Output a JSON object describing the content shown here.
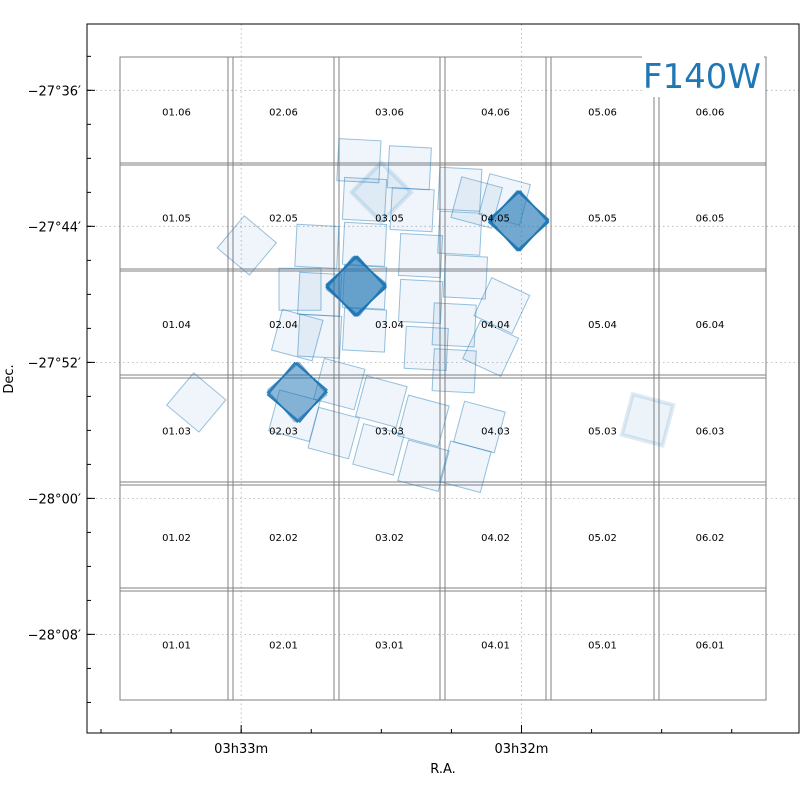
{
  "chart_data": {
    "type": "scatter",
    "title": "F140W",
    "xlabel": "R.A.",
    "ylabel": "Dec.",
    "x_unit": "hour angle (minutes of RA, 03h)",
    "y_unit": "degrees",
    "xlim": [
      33.55,
      31.01
    ],
    "ylim": [
      -28.23,
      -27.535
    ],
    "x_ticks": [
      {
        "value": 33.0,
        "label": "03h33m"
      },
      {
        "value": 32.0,
        "label": "03h32m"
      }
    ],
    "y_ticks": [
      {
        "value": -27.6,
        "label": "−27°36′"
      },
      {
        "value": -27.7333,
        "label": "−27°44′"
      },
      {
        "value": -27.8667,
        "label": "−27°52′"
      },
      {
        "value": -28.0,
        "label": "−28°00′"
      },
      {
        "value": -28.1333,
        "label": "−28°08′"
      }
    ],
    "grid": true,
    "tiles": [
      {
        "label": "01.06",
        "col": 1,
        "row": 6
      },
      {
        "label": "02.06",
        "col": 2,
        "row": 6
      },
      {
        "label": "03.06",
        "col": 3,
        "row": 6
      },
      {
        "label": "04.06",
        "col": 4,
        "row": 6
      },
      {
        "label": "05.06",
        "col": 5,
        "row": 6
      },
      {
        "label": "06.06",
        "col": 6,
        "row": 6
      },
      {
        "label": "01.05",
        "col": 1,
        "row": 5
      },
      {
        "label": "02.05",
        "col": 2,
        "row": 5
      },
      {
        "label": "03.05",
        "col": 3,
        "row": 5
      },
      {
        "label": "04.05",
        "col": 4,
        "row": 5
      },
      {
        "label": "05.05",
        "col": 5,
        "row": 5
      },
      {
        "label": "06.05",
        "col": 6,
        "row": 5
      },
      {
        "label": "01.04",
        "col": 1,
        "row": 4
      },
      {
        "label": "02.04",
        "col": 2,
        "row": 4
      },
      {
        "label": "03.04",
        "col": 3,
        "row": 4
      },
      {
        "label": "04.04",
        "col": 4,
        "row": 4
      },
      {
        "label": "05.04",
        "col": 5,
        "row": 4
      },
      {
        "label": "06.04",
        "col": 6,
        "row": 4
      },
      {
        "label": "01.03",
        "col": 1,
        "row": 3
      },
      {
        "label": "02.03",
        "col": 2,
        "row": 3
      },
      {
        "label": "03.03",
        "col": 3,
        "row": 3
      },
      {
        "label": "04.03",
        "col": 4,
        "row": 3
      },
      {
        "label": "05.03",
        "col": 5,
        "row": 3
      },
      {
        "label": "06.03",
        "col": 6,
        "row": 3
      },
      {
        "label": "01.02",
        "col": 1,
        "row": 2
      },
      {
        "label": "02.02",
        "col": 2,
        "row": 2
      },
      {
        "label": "03.02",
        "col": 3,
        "row": 2
      },
      {
        "label": "04.02",
        "col": 4,
        "row": 2
      },
      {
        "label": "05.02",
        "col": 5,
        "row": 2
      },
      {
        "label": "06.02",
        "col": 6,
        "row": 2
      },
      {
        "label": "01.01",
        "col": 1,
        "row": 1
      },
      {
        "label": "02.01",
        "col": 2,
        "row": 1
      },
      {
        "label": "03.01",
        "col": 3,
        "row": 1
      },
      {
        "label": "04.01",
        "col": 4,
        "row": 1
      },
      {
        "label": "05.01",
        "col": 5,
        "row": 1
      },
      {
        "label": "06.01",
        "col": 6,
        "row": 1
      }
    ],
    "footprints": [
      {
        "ra": 32.5,
        "dec": -27.7,
        "angle": 45,
        "style": "faint"
      },
      {
        "ra": 32.01,
        "dec": -27.728,
        "angle": 45,
        "style": "dense"
      },
      {
        "ra": 32.01,
        "dec": -27.728,
        "angle": 42,
        "style": "dense"
      },
      {
        "ra": 32.01,
        "dec": -27.728,
        "angle": 48,
        "style": "dense"
      },
      {
        "ra": 32.98,
        "dec": -27.752,
        "angle": 40,
        "style": "light"
      },
      {
        "ra": 32.07,
        "dec": -27.811,
        "angle": 25,
        "style": "light"
      },
      {
        "ra": 32.11,
        "dec": -27.853,
        "angle": 25,
        "style": "light"
      },
      {
        "ra": 32.59,
        "dec": -27.792,
        "angle": 45,
        "style": "dense"
      },
      {
        "ra": 32.59,
        "dec": -27.792,
        "angle": 42,
        "style": "dense"
      },
      {
        "ra": 32.59,
        "dec": -27.792,
        "angle": 48,
        "style": "dense"
      },
      {
        "ra": 32.59,
        "dec": -27.792,
        "angle": 38,
        "style": "light"
      },
      {
        "ra": 32.8,
        "dec": -27.896,
        "angle": 45,
        "style": "dense"
      },
      {
        "ra": 32.8,
        "dec": -27.896,
        "angle": 40,
        "style": "dense"
      },
      {
        "ra": 32.8,
        "dec": -27.896,
        "angle": 50,
        "style": "light"
      },
      {
        "ra": 33.16,
        "dec": -27.906,
        "angle": 40,
        "style": "light"
      },
      {
        "ra": 31.55,
        "dec": -27.923,
        "angle": 15,
        "style": "faint"
      },
      {
        "ra": 32.73,
        "dec": -27.753,
        "angle": 3,
        "style": "light"
      },
      {
        "ra": 32.72,
        "dec": -27.8,
        "angle": 3,
        "style": "light"
      },
      {
        "ra": 32.72,
        "dec": -27.841,
        "angle": 3,
        "style": "light"
      },
      {
        "ra": 32.58,
        "dec": -27.669,
        "angle": 3,
        "style": "light"
      },
      {
        "ra": 32.56,
        "dec": -27.707,
        "angle": 3,
        "style": "light"
      },
      {
        "ra": 32.56,
        "dec": -27.751,
        "angle": 3,
        "style": "light"
      },
      {
        "ra": 32.56,
        "dec": -27.793,
        "angle": 3,
        "style": "light"
      },
      {
        "ra": 32.56,
        "dec": -27.835,
        "angle": 3,
        "style": "light"
      },
      {
        "ra": 32.4,
        "dec": -27.676,
        "angle": 3,
        "style": "light"
      },
      {
        "ra": 32.39,
        "dec": -27.717,
        "angle": 3,
        "style": "light"
      },
      {
        "ra": 32.36,
        "dec": -27.762,
        "angle": 3,
        "style": "light"
      },
      {
        "ra": 32.36,
        "dec": -27.807,
        "angle": 3,
        "style": "light"
      },
      {
        "ra": 32.34,
        "dec": -27.853,
        "angle": 3,
        "style": "light"
      },
      {
        "ra": 32.22,
        "dec": -27.697,
        "angle": 3,
        "style": "light"
      },
      {
        "ra": 32.22,
        "dec": -27.74,
        "angle": 3,
        "style": "light"
      },
      {
        "ra": 32.2,
        "dec": -27.783,
        "angle": 3,
        "style": "light"
      },
      {
        "ra": 32.24,
        "dec": -27.83,
        "angle": 3,
        "style": "light"
      },
      {
        "ra": 32.24,
        "dec": -27.875,
        "angle": 3,
        "style": "light"
      },
      {
        "ra": 32.16,
        "dec": -27.71,
        "angle": 15,
        "style": "light"
      },
      {
        "ra": 32.06,
        "dec": -27.707,
        "angle": 15,
        "style": "light"
      },
      {
        "ra": 32.15,
        "dec": -27.93,
        "angle": 15,
        "style": "light"
      },
      {
        "ra": 32.2,
        "dec": -27.969,
        "angle": 15,
        "style": "light"
      },
      {
        "ra": 32.81,
        "dec": -27.919,
        "angle": 15,
        "style": "light"
      },
      {
        "ra": 32.65,
        "dec": -27.888,
        "angle": 15,
        "style": "light"
      },
      {
        "ra": 32.67,
        "dec": -27.936,
        "angle": 15,
        "style": "light"
      },
      {
        "ra": 32.5,
        "dec": -27.905,
        "angle": 15,
        "style": "light"
      },
      {
        "ra": 32.51,
        "dec": -27.952,
        "angle": 15,
        "style": "light"
      },
      {
        "ra": 32.35,
        "dec": -27.924,
        "angle": 15,
        "style": "light"
      },
      {
        "ra": 32.35,
        "dec": -27.968,
        "angle": 15,
        "style": "light"
      },
      {
        "ra": 32.8,
        "dec": -27.84,
        "angle": 15,
        "style": "light"
      },
      {
        "ra": 32.79,
        "dec": -27.795,
        "angle": 0,
        "style": "light"
      }
    ]
  }
}
